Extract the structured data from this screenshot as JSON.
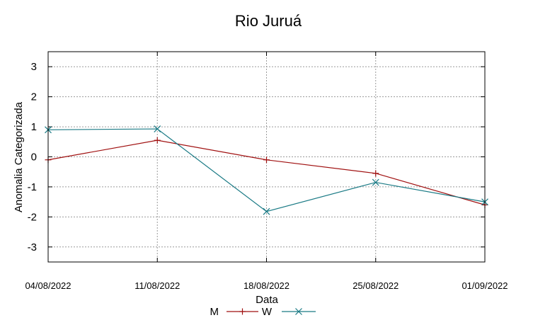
{
  "chart_data": {
    "type": "line",
    "title": "Rio Juruá",
    "xlabel": "Data",
    "ylabel": "Anomalia Categorizada",
    "categories": [
      "04/08/2022",
      "11/08/2022",
      "18/08/2022",
      "25/08/2022",
      "01/09/2022"
    ],
    "yticks": [
      3,
      2,
      1,
      0,
      -1,
      -2,
      -3
    ],
    "ylim": [
      -3.5,
      3.5
    ],
    "grid": true,
    "legend_position": "bottom",
    "series": [
      {
        "name": "M",
        "values": [
          -0.1,
          0.55,
          -0.1,
          -0.55,
          -1.6
        ],
        "color": "#a01010",
        "marker": "plus"
      },
      {
        "name": "W",
        "values": [
          0.9,
          0.93,
          -1.82,
          -0.85,
          -1.5
        ],
        "color": "#1a7a85",
        "marker": "x"
      }
    ]
  }
}
